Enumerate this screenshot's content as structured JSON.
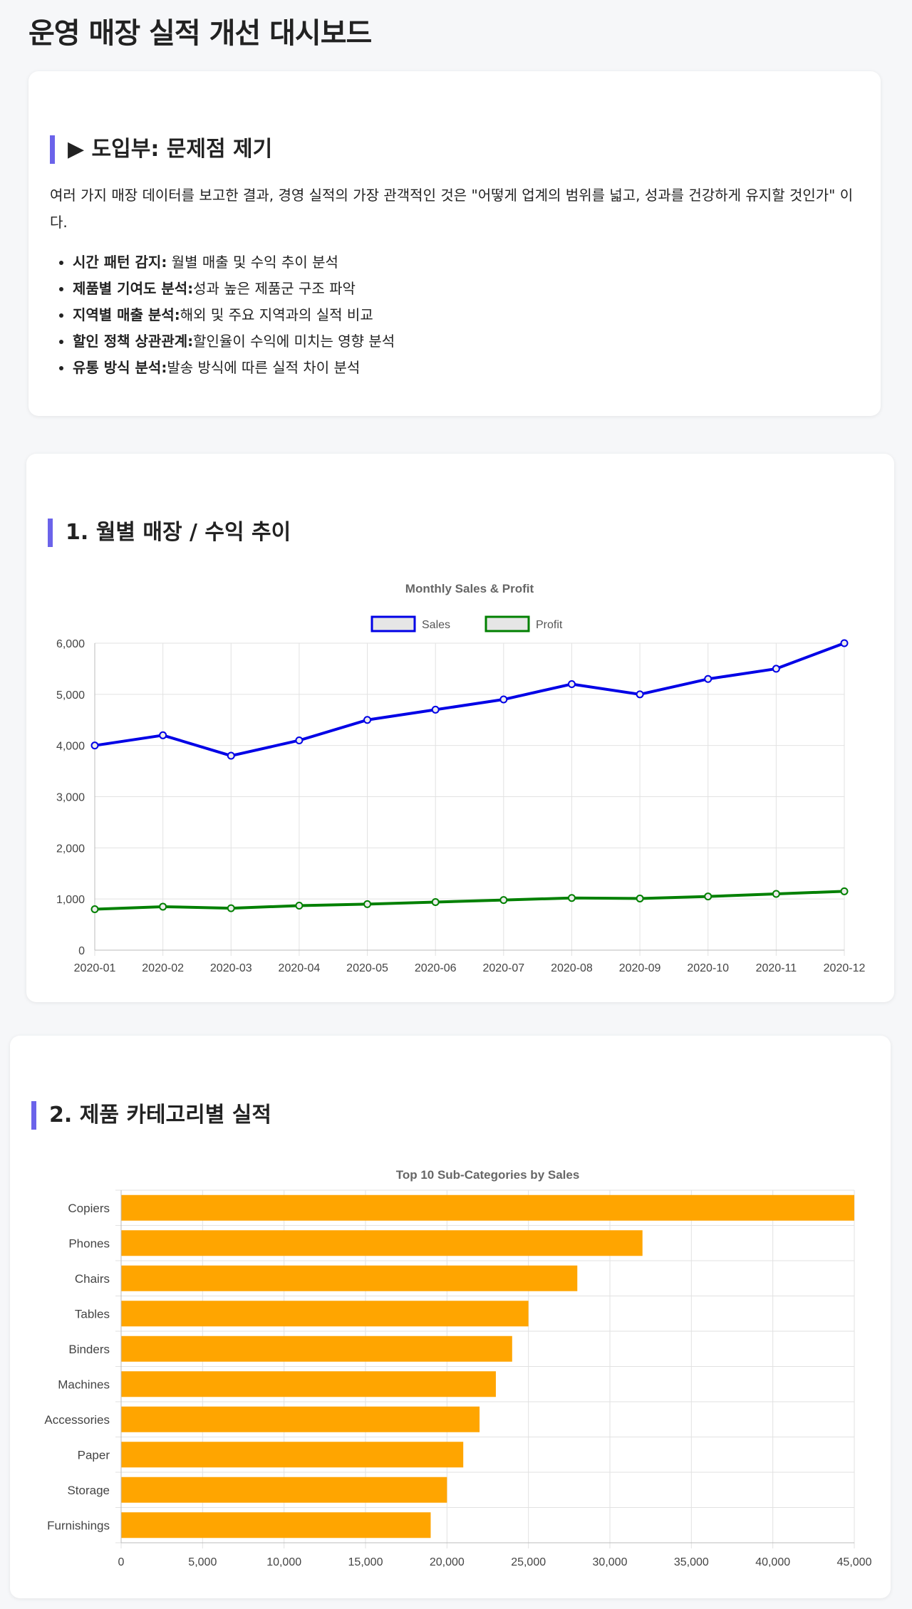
{
  "page": {
    "title": "운영 매장 실적 개선 대시보드"
  },
  "intro": {
    "heading": "▶ 도입부: 문제점 제기",
    "description": "여러 가지 매장 데이터를 보고한 결과, 경영 실적의 가장 관객적인 것은 \"어떻게 업계의 범위를 넓고, 성과를 건강하게 유지할 것인가\" 이다.",
    "items": [
      {
        "label": "시간 패턴 감지:",
        "text": " 월별 매출 및 수익 추이 분석"
      },
      {
        "label": "제품별 기여도 분석:",
        "text": "성과 높은 제품군 구조 파악"
      },
      {
        "label": "지역별 매출 분석:",
        "text": "해외 및 주요 지역과의 실적 비교"
      },
      {
        "label": "할인 정책 상관관계:",
        "text": "할인율이 수익에 미치는 영향 분석"
      },
      {
        "label": "유통 방식 분석:",
        "text": "발송 방식에 따른 실적 차이 분석"
      }
    ]
  },
  "monthly": {
    "heading": "1. 월별 매장 / 수익 추이"
  },
  "category": {
    "heading": "2. 제품 카테고리별 실적"
  },
  "chart_data": [
    {
      "type": "line",
      "title": "Monthly Sales & Profit",
      "x": [
        "2020-01",
        "2020-02",
        "2020-03",
        "2020-04",
        "2020-05",
        "2020-06",
        "2020-07",
        "2020-08",
        "2020-09",
        "2020-10",
        "2020-11",
        "2020-12"
      ],
      "series": [
        {
          "name": "Sales",
          "color": "#0000e6",
          "values": [
            4000,
            4200,
            3800,
            4100,
            4500,
            4700,
            4900,
            5200,
            5000,
            5300,
            5500,
            6000
          ]
        },
        {
          "name": "Profit",
          "color": "#008000",
          "values": [
            800,
            850,
            820,
            870,
            900,
            940,
            980,
            1020,
            1010,
            1050,
            1100,
            1150
          ]
        }
      ],
      "ylim": [
        0,
        6000
      ],
      "yticks": [
        0,
        1000,
        2000,
        3000,
        4000,
        5000,
        6000
      ],
      "ytick_labels": [
        "0",
        "1,000",
        "2,000",
        "3,000",
        "4,000",
        "5,000",
        "6,000"
      ],
      "legend": "top",
      "grid": true
    },
    {
      "type": "bar",
      "orientation": "horizontal",
      "title": "Top 10 Sub-Categories by Sales",
      "categories": [
        "Copiers",
        "Phones",
        "Chairs",
        "Tables",
        "Binders",
        "Machines",
        "Accessories",
        "Paper",
        "Storage",
        "Furnishings"
      ],
      "values": [
        45000,
        32000,
        28000,
        25000,
        24000,
        23000,
        22000,
        21000,
        20000,
        19000
      ],
      "color": "#ffa500",
      "xlim": [
        0,
        45000
      ],
      "xticks": [
        0,
        5000,
        10000,
        15000,
        20000,
        25000,
        30000,
        35000,
        40000,
        45000
      ],
      "xtick_labels": [
        "0",
        "5,000",
        "10,000",
        "15,000",
        "20,000",
        "25,000",
        "30,000",
        "35,000",
        "40,000",
        "45,000"
      ],
      "grid": true
    }
  ]
}
